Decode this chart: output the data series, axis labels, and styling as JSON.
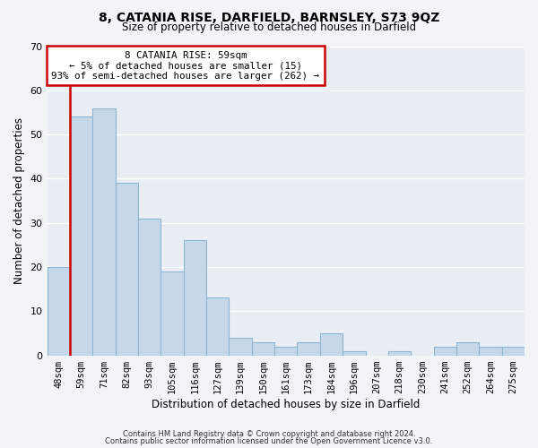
{
  "title": "8, CATANIA RISE, DARFIELD, BARNSLEY, S73 9QZ",
  "subtitle": "Size of property relative to detached houses in Darfield",
  "xlabel": "Distribution of detached houses by size in Darfield",
  "ylabel": "Number of detached properties",
  "bar_color": "#c5d8ea",
  "bar_edgecolor": "#8fb4d0",
  "ref_line_color": "#cc0000",
  "categories": [
    "48sqm",
    "59sqm",
    "71sqm",
    "82sqm",
    "93sqm",
    "105sqm",
    "116sqm",
    "127sqm",
    "139sqm",
    "150sqm",
    "161sqm",
    "173sqm",
    "184sqm",
    "196sqm",
    "207sqm",
    "218sqm",
    "230sqm",
    "241sqm",
    "252sqm",
    "264sqm",
    "275sqm"
  ],
  "values": [
    20,
    54,
    56,
    39,
    31,
    19,
    26,
    13,
    4,
    3,
    2,
    3,
    5,
    1,
    0,
    1,
    0,
    2,
    3,
    2,
    2
  ],
  "ylim": [
    0,
    70
  ],
  "yticks": [
    0,
    10,
    20,
    30,
    40,
    50,
    60,
    70
  ],
  "annotation_line1": "8 CATANIA RISE: 59sqm",
  "annotation_line2": "← 5% of detached houses are smaller (15)",
  "annotation_line3": "93% of semi-detached houses are larger (262) →",
  "footer1": "Contains HM Land Registry data © Crown copyright and database right 2024.",
  "footer2": "Contains public sector information licensed under the Open Government Licence v3.0.",
  "background_color": "#f2f5f8",
  "plot_background": "#e8eef4",
  "grid_color": "#ffffff",
  "annotation_box_edgecolor": "#cc0000",
  "annotation_box_facecolor": "#ffffff"
}
